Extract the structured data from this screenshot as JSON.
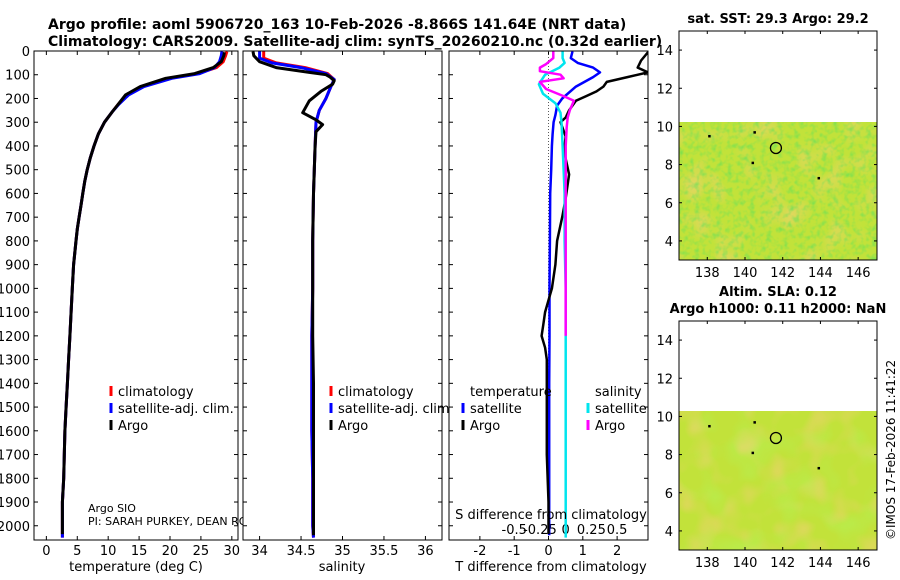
{
  "header": {
    "line1": "Argo profile: aoml 5906720_163 10-Feb-2026 -8.866S 141.64E (NRT data)",
    "line2": "Climatology: CARS2009. Satellite-adj clim: synTS_20260210.nc (0.32d earlier)"
  },
  "credit": {
    "line1": "Argo SIO",
    "line2": "PI: SARAH PURKEY, DEAN RO"
  },
  "stamp": "©IMOS 17-Feb-2026 11:41:22",
  "colors": {
    "climatology": "#ff0000",
    "satellite": "#0000ff",
    "argo": "#000000",
    "sal_sat": "#00e5ee",
    "sal_argo": "#ff00ff",
    "map_field": "#c2e23a",
    "map_land": "#ffffff"
  },
  "chart_data": [
    {
      "type": "line",
      "name": "temperature_profile",
      "xlabel": "temperature (deg C)",
      "xlim": [
        -2,
        31
      ],
      "xticks": [
        0,
        5,
        10,
        15,
        20,
        25,
        30
      ],
      "ylim": [
        2060,
        0
      ],
      "yticks": [
        0,
        100,
        200,
        300,
        400,
        500,
        600,
        700,
        800,
        900,
        1000,
        1100,
        1200,
        1300,
        1400,
        1500,
        1600,
        1700,
        1800,
        1900,
        2000
      ],
      "legend": [
        "climatology",
        "satellite-adj. clim.",
        "Argo"
      ],
      "series": [
        {
          "name": "climatology",
          "color": "#ff0000",
          "x": [
            29.2,
            29.0,
            28.6,
            27.5,
            24.5,
            20.0,
            15.5,
            13.0,
            11.6,
            10.7,
            9.4,
            8.4,
            7.7,
            7.1,
            6.6,
            6.2,
            5.9,
            5.6,
            5.3,
            5.0,
            4.8,
            4.6,
            4.4,
            4.2,
            4.0,
            3.8,
            3.6,
            3.4,
            3.2,
            3.0,
            2.9,
            2.8,
            2.6,
            2.6,
            2.6
          ],
          "y": [
            2,
            20,
            45,
            70,
            95,
            115,
            150,
            185,
            225,
            255,
            300,
            350,
            400,
            450,
            500,
            550,
            600,
            650,
            700,
            750,
            800,
            850,
            900,
            1000,
            1100,
            1200,
            1300,
            1400,
            1500,
            1600,
            1700,
            1800,
            1900,
            2000,
            2050
          ]
        },
        {
          "name": "satellite-adj. clim.",
          "color": "#0000ff",
          "x": [
            28.4,
            28.3,
            28.0,
            27.2,
            24.8,
            20.3,
            15.8,
            13.3,
            11.7,
            10.7,
            9.4,
            8.4,
            7.7,
            7.1,
            6.6,
            6.2,
            5.9,
            5.6,
            5.3,
            5.0,
            4.8,
            4.6,
            4.4,
            4.2,
            4.0,
            3.8,
            3.6,
            3.4,
            3.2,
            3.0,
            2.9,
            2.8,
            2.6,
            2.6,
            2.6
          ],
          "y": [
            2,
            20,
            45,
            70,
            95,
            115,
            150,
            185,
            225,
            255,
            300,
            350,
            400,
            450,
            500,
            550,
            600,
            650,
            700,
            750,
            800,
            850,
            900,
            1000,
            1100,
            1200,
            1300,
            1400,
            1500,
            1600,
            1700,
            1800,
            1900,
            2000,
            2050
          ]
        },
        {
          "name": "Argo",
          "color": "#000000",
          "x": [
            28.8,
            28.7,
            28.3,
            27.0,
            24.0,
            19.3,
            15.2,
            12.8,
            11.6,
            10.7,
            9.4,
            8.4,
            7.7,
            7.1,
            6.6,
            6.2,
            5.9,
            5.6,
            5.3,
            5.0,
            4.8,
            4.6,
            4.4,
            4.2,
            4.0,
            3.8,
            3.6,
            3.4,
            3.2,
            3.0,
            2.9,
            2.8,
            2.6,
            2.6,
            2.6
          ],
          "y": [
            5,
            20,
            45,
            70,
            95,
            115,
            150,
            185,
            225,
            255,
            300,
            350,
            400,
            450,
            500,
            550,
            600,
            650,
            700,
            750,
            800,
            850,
            900,
            1000,
            1100,
            1200,
            1300,
            1400,
            1500,
            1600,
            1700,
            1800,
            1900,
            2000,
            2035
          ]
        }
      ]
    },
    {
      "type": "line",
      "name": "salinity_profile",
      "xlabel": "salinity",
      "xlim": [
        33.8,
        36.2
      ],
      "xticks": [
        34,
        34.5,
        35,
        35.5,
        36
      ],
      "ylim": [
        2060,
        0
      ],
      "legend": [
        "climatology",
        "satellite-adj. clim.",
        "Argo"
      ],
      "series": [
        {
          "name": "climatology",
          "color": "#ff0000",
          "x": [
            34.05,
            34.05,
            34.2,
            34.55,
            34.82,
            34.9,
            34.86,
            34.8,
            34.72,
            34.68,
            34.67,
            34.66,
            34.65,
            34.64,
            34.64,
            34.63,
            34.63,
            34.63,
            34.64,
            34.64,
            34.65
          ],
          "y": [
            2,
            30,
            50,
            70,
            95,
            120,
            150,
            200,
            250,
            300,
            400,
            500,
            600,
            800,
            1000,
            1200,
            1400,
            1600,
            1800,
            2000,
            2050
          ]
        },
        {
          "name": "satellite-adj. clim.",
          "color": "#0000ff",
          "x": [
            34.0,
            34.0,
            34.15,
            34.5,
            34.8,
            34.9,
            34.86,
            34.8,
            34.72,
            34.68,
            34.67,
            34.66,
            34.65,
            34.64,
            34.64,
            34.63,
            34.63,
            34.63,
            34.64,
            34.64,
            34.65
          ],
          "y": [
            2,
            30,
            50,
            70,
            95,
            120,
            150,
            200,
            250,
            300,
            400,
            500,
            600,
            800,
            1000,
            1200,
            1400,
            1600,
            1800,
            2000,
            2050
          ]
        },
        {
          "name": "Argo",
          "color": "#000000",
          "x": [
            33.92,
            33.93,
            34.0,
            34.2,
            34.6,
            34.8,
            34.85,
            34.9,
            34.88,
            34.74,
            34.6,
            34.52,
            34.68,
            34.76,
            34.68,
            34.67,
            34.66,
            34.65,
            34.64,
            34.64,
            34.64,
            34.65,
            34.65,
            34.65,
            34.65
          ],
          "y": [
            2,
            20,
            45,
            70,
            90,
            100,
            110,
            125,
            140,
            170,
            210,
            260,
            290,
            310,
            340,
            400,
            500,
            600,
            800,
            1000,
            1200,
            1400,
            1600,
            1800,
            2040
          ]
        }
      ]
    },
    {
      "type": "line",
      "name": "difference_from_climatology",
      "xlabel": "T difference from climatology",
      "top_xlabel": "S difference from climatology",
      "xlim": [
        -2.9,
        2.9
      ],
      "xticks": [
        -2,
        -1,
        0,
        1,
        2
      ],
      "sal_ticks_values": [
        -0.5,
        -0.25,
        0,
        0.25,
        0.5
      ],
      "sal_ticks_labels": [
        "-0.5",
        "-0.25",
        "0",
        "0.25",
        "0.5"
      ],
      "ylim": [
        2060,
        0
      ],
      "legend_groups": [
        "temperature",
        "salinity"
      ],
      "legend_temperature": [
        "satellite",
        "Argo"
      ],
      "legend_salinity": [
        "satellite",
        "Argo"
      ],
      "series": [
        {
          "name": "temperature satellite",
          "color": "#0000ff",
          "x": [
            0.7,
            0.65,
            0.85,
            1.3,
            1.5,
            1.3,
            0.8,
            0.4,
            0.25,
            0.2,
            0.15,
            0.12,
            0.1,
            0.08,
            0.05,
            0.04,
            0.03,
            0.03,
            0.02,
            0.02,
            0.02
          ],
          "y": [
            2,
            30,
            50,
            70,
            90,
            110,
            150,
            200,
            230,
            270,
            300,
            350,
            400,
            500,
            600,
            800,
            1000,
            1200,
            1400,
            1800,
            2040
          ]
        },
        {
          "name": "temperature Argo",
          "color": "#000000",
          "x": [
            2.9,
            2.7,
            2.6,
            2.9,
            2.3,
            1.7,
            1.6,
            1.4,
            1.1,
            0.8,
            0.6,
            0.5,
            0.35,
            0.5,
            0.45,
            0.6,
            0.5,
            0.4,
            0.25,
            0.2,
            0.1,
            0.0,
            -0.1,
            -0.15,
            -0.2,
            -0.1,
            -0.05,
            -0.05,
            -0.05,
            0.0,
            0.0
          ],
          "y": [
            5,
            40,
            70,
            90,
            110,
            130,
            150,
            170,
            190,
            210,
            250,
            280,
            300,
            360,
            420,
            520,
            620,
            700,
            800,
            900,
            1000,
            1050,
            1100,
            1150,
            1200,
            1250,
            1300,
            1500,
            1700,
            1900,
            2035
          ]
        },
        {
          "name": "salinity satellite",
          "color": "#00e5ee",
          "x": [
            -0.03,
            -0.03,
            -0.01,
            -0.06,
            -0.2,
            -0.26,
            -0.22,
            -0.1,
            -0.05,
            -0.04,
            -0.03,
            -0.02,
            -0.01,
            -0.01,
            0.0,
            0.0,
            0.0,
            0.0,
            0.0
          ],
          "y": [
            2,
            30,
            50,
            70,
            100,
            140,
            180,
            220,
            260,
            300,
            400,
            500,
            600,
            800,
            1000,
            1200,
            1500,
            1800,
            2050
          ]
        },
        {
          "name": "salinity Argo",
          "color": "#ff00ff",
          "x": [
            -0.12,
            -0.12,
            -0.19,
            -0.25,
            -0.25,
            -0.05,
            -0.02,
            -0.25,
            -0.19,
            -0.02,
            0.08,
            0.06,
            0.04,
            0.02,
            0.01,
            0.0,
            0.0,
            0.0,
            0.0,
            0.0
          ],
          "y": [
            2,
            30,
            55,
            70,
            85,
            100,
            115,
            130,
            160,
            190,
            210,
            230,
            250,
            280,
            320,
            400,
            600,
            800,
            1000,
            1200
          ]
        }
      ]
    },
    {
      "type": "heatmap",
      "name": "sst_map",
      "title": "sat. SST: 29.3 Argo: 29.2",
      "xlim": [
        136.5,
        147
      ],
      "ylim": [
        3,
        15
      ],
      "xticks": [
        138,
        140,
        142,
        144,
        146
      ],
      "yticks": [
        4,
        6,
        8,
        10,
        12,
        14
      ],
      "data_lat_max": 10.1,
      "float_positions": [
        [
          141.64,
          8.87
        ]
      ],
      "track_points": [
        [
          138.1,
          9.5
        ],
        [
          140.4,
          8.1
        ],
        [
          143.9,
          7.3
        ],
        [
          140.5,
          9.7
        ]
      ]
    },
    {
      "type": "heatmap",
      "name": "sla_map",
      "title_line1": "Altim. SLA: 0.12",
      "title_line2": "Argo h1000: 0.11 h2000: NaN",
      "xlim": [
        136.5,
        147
      ],
      "ylim": [
        3,
        15
      ],
      "xticks": [
        138,
        140,
        142,
        144,
        146
      ],
      "yticks": [
        4,
        6,
        8,
        10,
        12,
        14
      ],
      "data_lat_max": 10.1,
      "float_positions": [
        [
          141.64,
          8.87
        ]
      ],
      "track_points": [
        [
          138.1,
          9.5
        ],
        [
          140.4,
          8.1
        ],
        [
          143.9,
          7.3
        ],
        [
          140.5,
          9.7
        ]
      ]
    }
  ]
}
